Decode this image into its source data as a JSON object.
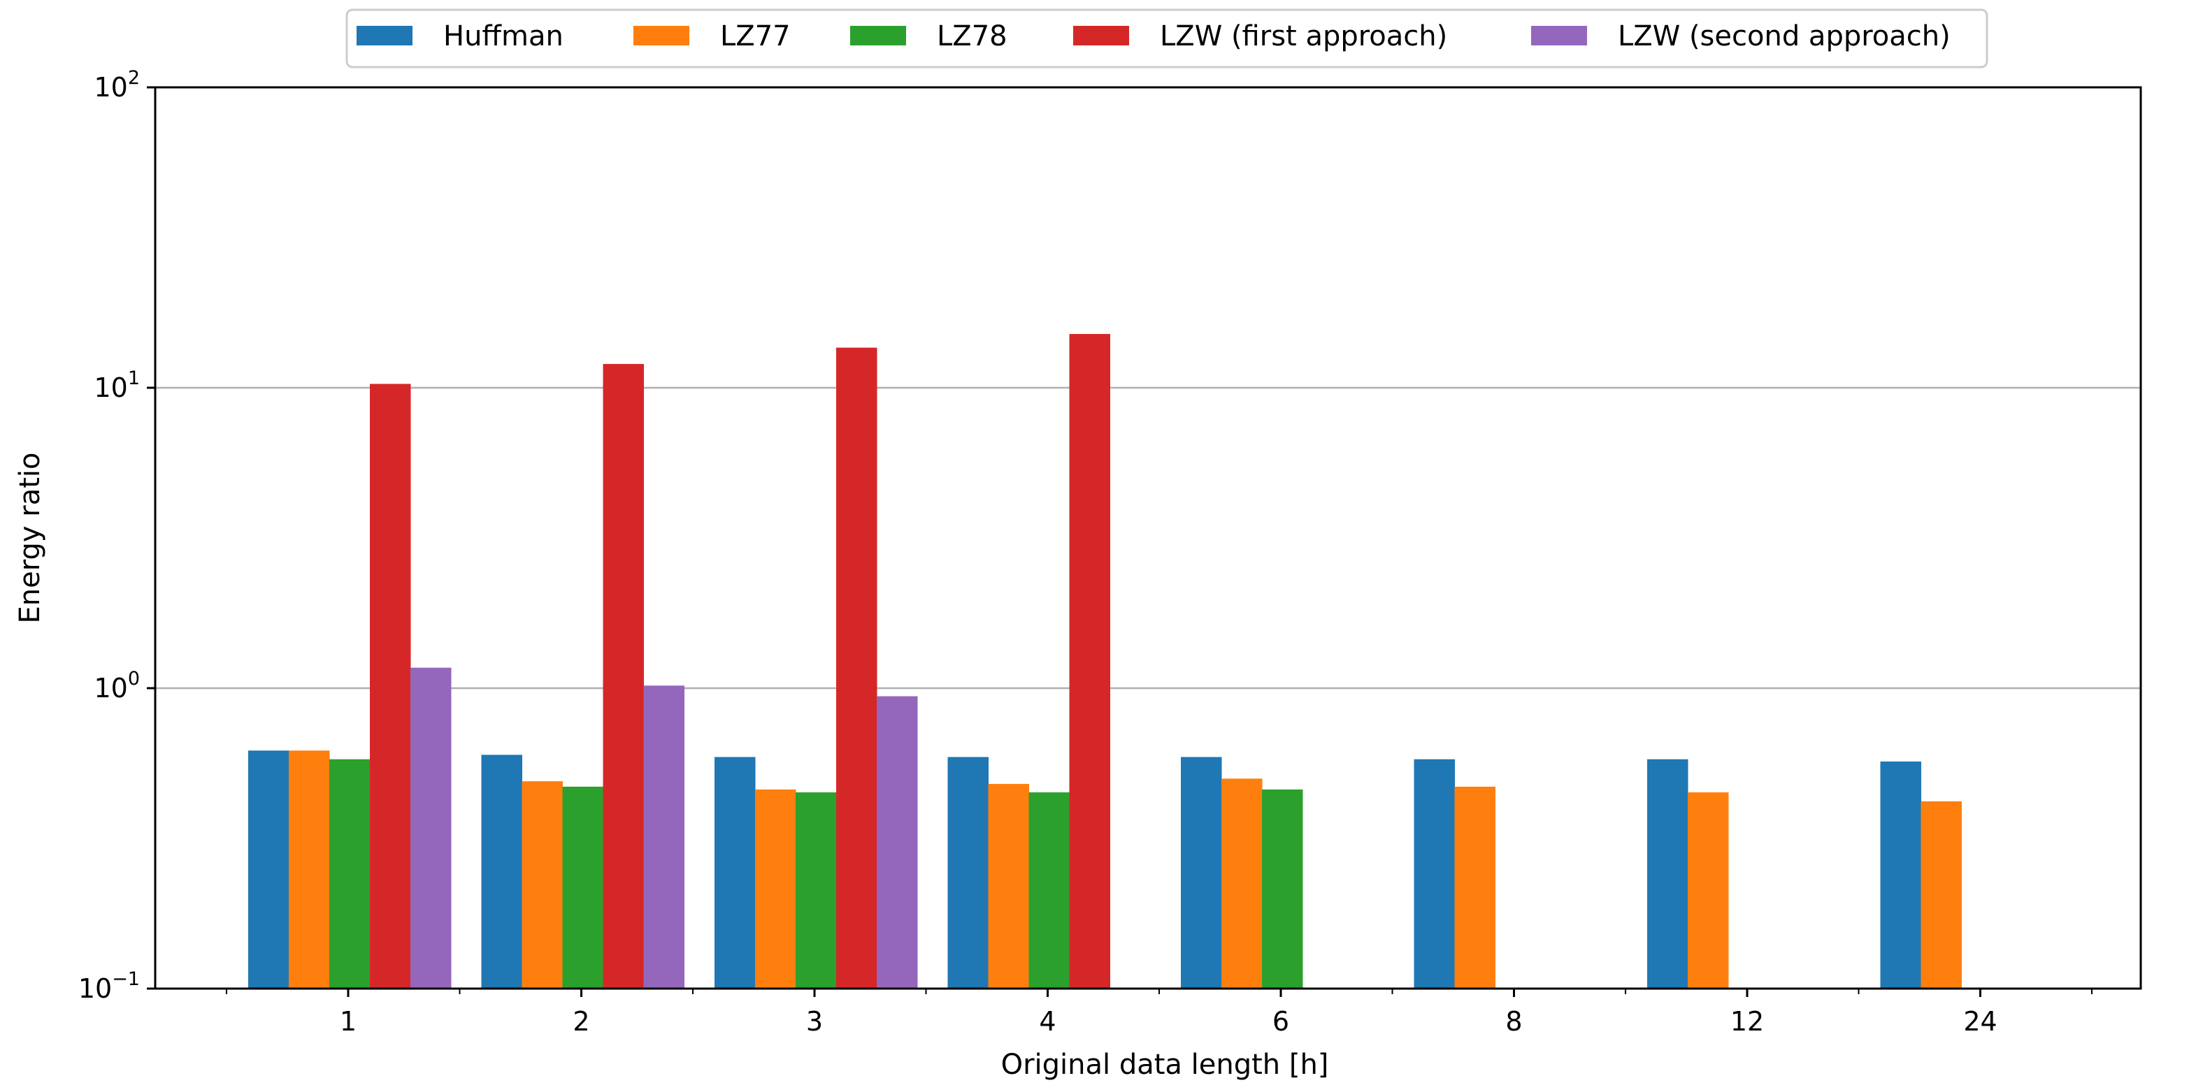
{
  "chart_data": {
    "type": "bar",
    "title": "",
    "xlabel": "Original data length [h]",
    "ylabel": "Energy ratio",
    "y_scale": "log",
    "ylim": [
      0.1,
      100
    ],
    "y_ticks": [
      {
        "value": 0.1,
        "base": "10",
        "exp": "−1"
      },
      {
        "value": 1,
        "base": "10",
        "exp": "0"
      },
      {
        "value": 10,
        "base": "10",
        "exp": "1"
      },
      {
        "value": 100,
        "base": "10",
        "exp": "2"
      }
    ],
    "grid": "horizontal at major y ticks",
    "legend": "top-center, outside plot area",
    "categories": [
      "1",
      "2",
      "3",
      "4",
      "6",
      "8",
      "12",
      "24"
    ],
    "series": [
      {
        "name": "Huffman",
        "color": "#1f77b4",
        "values": [
          0.62,
          0.6,
          0.59,
          0.59,
          0.59,
          0.58,
          0.58,
          0.57
        ]
      },
      {
        "name": "LZ77",
        "color": "#ff7f0e",
        "values": [
          0.62,
          0.49,
          0.46,
          0.48,
          0.5,
          0.47,
          0.45,
          0.42
        ]
      },
      {
        "name": "LZ78",
        "color": "#2ca02c",
        "values": [
          0.58,
          0.47,
          0.45,
          0.45,
          0.46,
          null,
          null,
          null
        ]
      },
      {
        "name": "LZW (first approach)",
        "color": "#d62728",
        "values": [
          10.3,
          12.0,
          13.6,
          15.1,
          null,
          null,
          null,
          null
        ]
      },
      {
        "name": "LZW (second approach)",
        "color": "#9467bd",
        "values": [
          1.17,
          1.02,
          0.94,
          null,
          null,
          null,
          null,
          null
        ]
      }
    ]
  }
}
